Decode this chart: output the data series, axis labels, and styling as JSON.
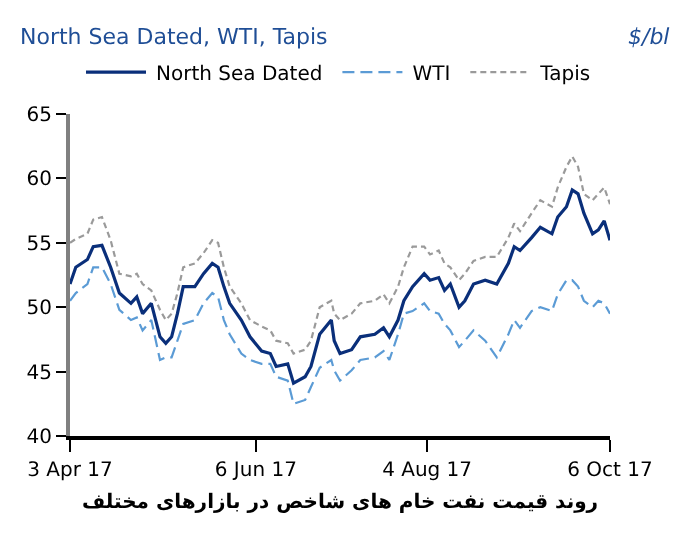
{
  "chart_data": {
    "type": "line",
    "title": "North Sea Dated, WTI, Tapis",
    "ylabel": "$/bl",
    "annotations": [
      "روند قیمت نفت خام های شاخص در بازارهای مختلف"
    ],
    "x": [
      "2017-04-03",
      "2017-04-05",
      "2017-04-09",
      "2017-04-11",
      "2017-04-14",
      "2017-04-17",
      "2017-04-20",
      "2017-04-24",
      "2017-04-26",
      "2017-04-28",
      "2017-05-01",
      "2017-05-04",
      "2017-05-06",
      "2017-05-08",
      "2017-05-10",
      "2017-05-12",
      "2017-05-16",
      "2017-05-19",
      "2017-05-22",
      "2017-05-24",
      "2017-05-26",
      "2017-05-28",
      "2017-06-01",
      "2017-06-04",
      "2017-06-08",
      "2017-06-11",
      "2017-06-13",
      "2017-06-17",
      "2017-06-19",
      "2017-06-23",
      "2017-06-25",
      "2017-06-28",
      "2017-07-02",
      "2017-07-03",
      "2017-07-05",
      "2017-07-09",
      "2017-07-12",
      "2017-07-17",
      "2017-07-20",
      "2017-07-22",
      "2017-07-25",
      "2017-07-27",
      "2017-07-30",
      "2017-08-03",
      "2017-08-05",
      "2017-08-08",
      "2017-08-10",
      "2017-08-12",
      "2017-08-15",
      "2017-08-17",
      "2017-08-20",
      "2017-08-24",
      "2017-08-28",
      "2017-09-01",
      "2017-09-03",
      "2017-09-05",
      "2017-09-09",
      "2017-09-12",
      "2017-09-16",
      "2017-09-18",
      "2017-09-21",
      "2017-09-23",
      "2017-09-25",
      "2017-09-27",
      "2017-09-30",
      "2017-10-02",
      "2017-10-04",
      "2017-10-06"
    ],
    "series": [
      {
        "name": "North Sea Dated",
        "color": "#0a2f7a",
        "line_style": "solid",
        "values": [
          51.8,
          53.1,
          53.7,
          54.7,
          54.8,
          53.1,
          51.1,
          50.3,
          50.8,
          49.5,
          50.3,
          47.7,
          47.2,
          47.7,
          49.5,
          51.6,
          51.6,
          52.6,
          53.4,
          53.1,
          51.6,
          50.3,
          49.0,
          47.7,
          46.6,
          46.4,
          45.4,
          45.6,
          44.1,
          44.6,
          45.4,
          47.9,
          49.0,
          47.4,
          46.4,
          46.7,
          47.7,
          47.9,
          48.4,
          47.7,
          49.0,
          50.5,
          51.6,
          52.6,
          52.1,
          52.3,
          51.3,
          51.8,
          50.0,
          50.5,
          51.8,
          52.1,
          51.8,
          53.4,
          54.7,
          54.4,
          55.4,
          56.2,
          55.7,
          57.0,
          57.8,
          59.1,
          58.8,
          57.3,
          55.7,
          56.0,
          56.7,
          55.2
        ]
      },
      {
        "name": "WTI",
        "color": "#5b9bd5",
        "line_style": "dashed",
        "values": [
          50.5,
          51.1,
          51.8,
          53.1,
          53.1,
          51.8,
          49.8,
          49.0,
          49.2,
          48.2,
          49.0,
          45.9,
          46.1,
          46.1,
          47.4,
          48.7,
          49.0,
          50.3,
          51.1,
          50.8,
          49.0,
          47.9,
          46.4,
          45.9,
          45.6,
          45.6,
          44.6,
          44.3,
          42.5,
          42.8,
          43.8,
          45.3,
          45.9,
          45.1,
          44.3,
          45.1,
          45.9,
          46.1,
          46.6,
          45.9,
          47.9,
          49.5,
          49.7,
          50.3,
          49.7,
          49.5,
          48.7,
          48.2,
          46.9,
          47.4,
          48.2,
          47.4,
          46.1,
          47.9,
          49.0,
          48.4,
          49.7,
          50.0,
          49.7,
          51.0,
          52.1,
          52.1,
          51.6,
          50.5,
          50.0,
          50.5,
          50.3,
          49.5
        ]
      },
      {
        "name": "Tapis",
        "color": "#9a9a9a",
        "line_style": "dotted",
        "values": [
          55.0,
          55.3,
          55.7,
          56.8,
          57.0,
          55.2,
          52.6,
          52.4,
          52.6,
          51.8,
          51.3,
          49.8,
          49.0,
          49.5,
          51.1,
          53.1,
          53.4,
          54.2,
          55.2,
          55.0,
          53.1,
          51.6,
          50.3,
          49.0,
          48.5,
          48.2,
          47.4,
          47.2,
          46.4,
          46.7,
          47.4,
          50.0,
          50.5,
          49.5,
          49.0,
          49.5,
          50.3,
          50.5,
          51.0,
          50.3,
          51.6,
          53.1,
          54.7,
          54.7,
          54.1,
          54.4,
          53.4,
          53.1,
          52.1,
          52.6,
          53.6,
          53.9,
          53.9,
          55.4,
          56.5,
          55.9,
          57.3,
          58.3,
          57.8,
          59.3,
          60.9,
          61.7,
          60.9,
          58.8,
          58.3,
          58.8,
          59.3,
          58.0
        ]
      }
    ],
    "xlim": [
      "2017-04-03",
      "2017-10-06"
    ],
    "xticks": [
      {
        "value": "2017-04-03",
        "label": "3 Apr 17"
      },
      {
        "value": "2017-06-06",
        "label": "6 Jun 17"
      },
      {
        "value": "2017-08-04",
        "label": "4 Aug 17"
      },
      {
        "value": "2017-10-06",
        "label": "6 Oct 17"
      }
    ],
    "ylim": [
      40,
      65
    ],
    "yticks": [
      40,
      45,
      50,
      55,
      60,
      65
    ],
    "legend": "top",
    "marker": "none"
  }
}
